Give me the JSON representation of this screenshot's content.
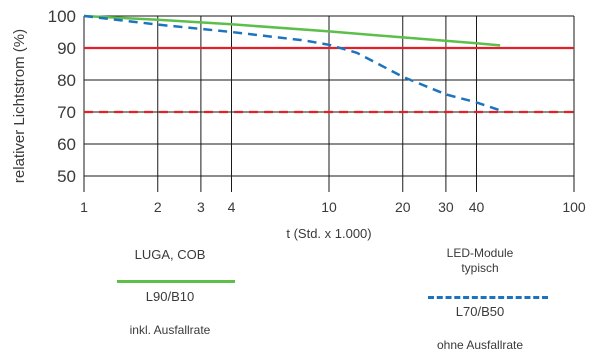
{
  "chart_data": {
    "type": "line",
    "xlabel": "t (Std. x 1.000)",
    "ylabel": "relativer Lichtstrom (%)",
    "xscale": "log",
    "xlim": [
      1,
      100
    ],
    "ylim": [
      45,
      100
    ],
    "xticks": [
      1,
      2,
      3,
      4,
      10,
      20,
      30,
      40,
      100
    ],
    "xtick_labels": [
      "1",
      "2",
      "3",
      "4",
      "10",
      "20",
      "30",
      "40",
      "100"
    ],
    "yticks": [
      50,
      60,
      70,
      80,
      90,
      100
    ],
    "ytick_labels": [
      "50",
      "60",
      "70",
      "80",
      "90",
      "100"
    ],
    "grid": true,
    "series": [
      {
        "name": "LUGA, COB",
        "style": "solid",
        "color": "#5cbf4a",
        "x": [
          1,
          2,
          4,
          10,
          20,
          40,
          50
        ],
        "y": [
          100,
          98.8,
          97.4,
          95.2,
          93.3,
          91.5,
          90.8
        ]
      },
      {
        "name": "LED-Module typisch",
        "style": "dashed",
        "color": "#1e73be",
        "x": [
          1,
          2,
          4,
          8,
          10,
          13,
          20,
          30,
          40,
          50
        ],
        "y": [
          100,
          97.3,
          95,
          92.3,
          91,
          88.5,
          81,
          75.5,
          73,
          70.5
        ]
      }
    ],
    "reference_lines": [
      {
        "y": 90,
        "style": "solid",
        "color": "#e2202a"
      },
      {
        "y": 70,
        "style": "dashed",
        "color": "#e2202a"
      }
    ]
  },
  "legend": {
    "left": {
      "title": "LUGA, COB",
      "label": "L90/B10",
      "note": "inkl. Ausfallrate"
    },
    "right": {
      "title_line1": "LED-Module",
      "title_line2": "typisch",
      "label": "L70/B50",
      "note": "ohne Ausfallrate"
    }
  }
}
